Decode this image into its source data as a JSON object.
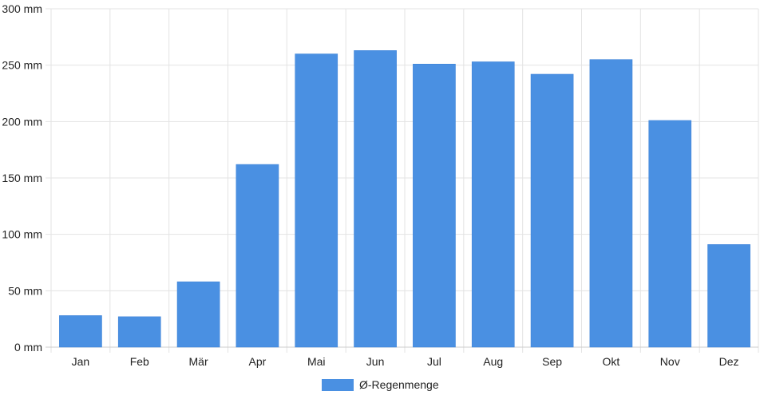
{
  "chart_data": {
    "type": "bar",
    "categories": [
      "Jan",
      "Feb",
      "Mär",
      "Apr",
      "Mai",
      "Jun",
      "Jul",
      "Aug",
      "Sep",
      "Okt",
      "Nov",
      "Dez"
    ],
    "series": [
      {
        "name": "Ø-Regenmenge",
        "color": "#4a90e2",
        "values": [
          28,
          27,
          58,
          162,
          260,
          263,
          251,
          253,
          242,
          255,
          201,
          91
        ]
      }
    ],
    "y_unit_suffix": " mm",
    "ylim": [
      0,
      300
    ],
    "y_ticks": [
      0,
      50,
      100,
      150,
      200,
      250,
      300
    ],
    "y_tick_labels": [
      "0 mm",
      "50 mm",
      "100 mm",
      "150 mm",
      "200 mm",
      "250 mm",
      "300 mm"
    ],
    "grid": true,
    "legend": "bottom-center",
    "title": "",
    "xlabel": "",
    "ylabel": ""
  }
}
